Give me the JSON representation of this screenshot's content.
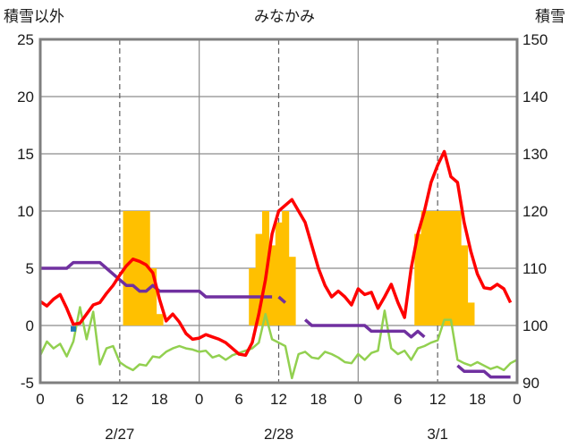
{
  "chart_data": {
    "type": "line",
    "title": "みなかみ",
    "left_axis_label": "積雪以外",
    "right_axis_label": "積雪",
    "y_left": {
      "min": -5,
      "max": 25,
      "ticks": [
        -5,
        0,
        5,
        10,
        15,
        20,
        25
      ]
    },
    "y_right": {
      "min": 90,
      "max": 150,
      "ticks": [
        90,
        100,
        110,
        120,
        130,
        140,
        150
      ]
    },
    "x": {
      "min": 0,
      "max": 72,
      "ticks": [
        0,
        6,
        12,
        18,
        24,
        30,
        36,
        42,
        48,
        54,
        60,
        66,
        72
      ],
      "tick_labels": [
        "0",
        "6",
        "12",
        "18",
        "0",
        "6",
        "12",
        "18",
        "0",
        "6",
        "12",
        "18",
        "0"
      ]
    },
    "days": [
      {
        "label": "2/27",
        "center": 12
      },
      {
        "label": "2/28",
        "center": 36
      },
      {
        "label": "3/1",
        "center": 60
      }
    ],
    "colors": {
      "bars": "#ffc000",
      "red": "#ff0000",
      "green": "#92d050",
      "purple": "#7030a0",
      "marker": "#1f77b4"
    },
    "bars": [
      {
        "x": 13,
        "value": 10
      },
      {
        "x": 14,
        "value": 10
      },
      {
        "x": 15,
        "value": 10
      },
      {
        "x": 16,
        "value": 10
      },
      {
        "x": 17,
        "value": 5
      },
      {
        "x": 18,
        "value": 1
      },
      {
        "x": 32,
        "value": 5
      },
      {
        "x": 33,
        "value": 8
      },
      {
        "x": 34,
        "value": 10
      },
      {
        "x": 35,
        "value": 7
      },
      {
        "x": 36,
        "value": 9
      },
      {
        "x": 37,
        "value": 10
      },
      {
        "x": 38,
        "value": 6
      },
      {
        "x": 57,
        "value": 8
      },
      {
        "x": 58,
        "value": 10
      },
      {
        "x": 59,
        "value": 10
      },
      {
        "x": 60,
        "value": 10
      },
      {
        "x": 61,
        "value": 10
      },
      {
        "x": 62,
        "value": 10
      },
      {
        "x": 63,
        "value": 10
      },
      {
        "x": 64,
        "value": 7
      },
      {
        "x": 65,
        "value": 2
      }
    ],
    "red_series": [
      [
        0,
        2.1
      ],
      [
        1,
        1.7
      ],
      [
        2,
        2.3
      ],
      [
        3,
        2.7
      ],
      [
        4,
        1.5
      ],
      [
        5,
        0.1
      ],
      [
        6,
        0.2
      ],
      [
        7,
        1.0
      ],
      [
        8,
        1.8
      ],
      [
        9,
        2.0
      ],
      [
        10,
        2.8
      ],
      [
        11,
        3.5
      ],
      [
        12,
        4.4
      ],
      [
        13,
        5.2
      ],
      [
        14,
        5.8
      ],
      [
        15,
        5.6
      ],
      [
        16,
        5.3
      ],
      [
        17,
        4.6
      ],
      [
        18,
        2.3
      ],
      [
        19,
        0.4
      ],
      [
        20,
        1.0
      ],
      [
        21,
        0.3
      ],
      [
        22,
        -0.7
      ],
      [
        23,
        -1.2
      ],
      [
        24,
        -1.1
      ],
      [
        25,
        -0.8
      ],
      [
        26,
        -1.0
      ],
      [
        27,
        -1.2
      ],
      [
        28,
        -1.5
      ],
      [
        29,
        -2.0
      ],
      [
        30,
        -2.5
      ],
      [
        31,
        -2.6
      ],
      [
        32,
        -1.5
      ],
      [
        33,
        1.0
      ],
      [
        34,
        4.0
      ],
      [
        35,
        8.0
      ],
      [
        36,
        10.0
      ],
      [
        37,
        10.5
      ],
      [
        38,
        11.0
      ],
      [
        39,
        10.0
      ],
      [
        40,
        9.0
      ],
      [
        41,
        7.0
      ],
      [
        42,
        5.0
      ],
      [
        43,
        3.5
      ],
      [
        44,
        2.5
      ],
      [
        45,
        3.0
      ],
      [
        46,
        2.5
      ],
      [
        47,
        1.8
      ],
      [
        48,
        3.2
      ],
      [
        49,
        2.7
      ],
      [
        50,
        2.9
      ],
      [
        51,
        1.5
      ],
      [
        52,
        2.5
      ],
      [
        53,
        3.6
      ],
      [
        54,
        2.0
      ],
      [
        55,
        0.7
      ],
      [
        56,
        5.0
      ],
      [
        57,
        8.0
      ],
      [
        58,
        10.0
      ],
      [
        59,
        12.5
      ],
      [
        60,
        14.0
      ],
      [
        61,
        15.2
      ],
      [
        62,
        13.0
      ],
      [
        63,
        12.5
      ],
      [
        64,
        9.0
      ],
      [
        65,
        6.5
      ],
      [
        66,
        4.5
      ],
      [
        67,
        3.3
      ],
      [
        68,
        3.2
      ],
      [
        69,
        3.6
      ],
      [
        70,
        3.2
      ],
      [
        71,
        2.0
      ]
    ],
    "green_series": [
      [
        0,
        -2.6
      ],
      [
        1,
        -1.4
      ],
      [
        2,
        -2.0
      ],
      [
        3,
        -1.6
      ],
      [
        4,
        -2.7
      ],
      [
        5,
        -1.4
      ],
      [
        6,
        1.6
      ],
      [
        7,
        -1.2
      ],
      [
        8,
        1.2
      ],
      [
        9,
        -3.4
      ],
      [
        10,
        -2.0
      ],
      [
        11,
        -1.8
      ],
      [
        12,
        -3.2
      ],
      [
        13,
        -3.6
      ],
      [
        14,
        -3.9
      ],
      [
        15,
        -3.4
      ],
      [
        16,
        -3.5
      ],
      [
        17,
        -2.7
      ],
      [
        18,
        -2.8
      ],
      [
        19,
        -2.3
      ],
      [
        20,
        -2.0
      ],
      [
        21,
        -1.8
      ],
      [
        22,
        -2.0
      ],
      [
        23,
        -2.1
      ],
      [
        24,
        -2.3
      ],
      [
        25,
        -2.2
      ],
      [
        26,
        -2.8
      ],
      [
        27,
        -2.6
      ],
      [
        28,
        -3.0
      ],
      [
        29,
        -2.6
      ],
      [
        30,
        -2.4
      ],
      [
        31,
        -2.2
      ],
      [
        32,
        -2.0
      ],
      [
        33,
        -1.5
      ],
      [
        34,
        1.0
      ],
      [
        35,
        -1.2
      ],
      [
        36,
        -1.5
      ],
      [
        37,
        -1.8
      ],
      [
        38,
        -4.6
      ],
      [
        39,
        -2.5
      ],
      [
        40,
        -2.3
      ],
      [
        41,
        -2.8
      ],
      [
        42,
        -2.9
      ],
      [
        43,
        -2.3
      ],
      [
        44,
        -2.5
      ],
      [
        45,
        -2.8
      ],
      [
        46,
        -3.2
      ],
      [
        47,
        -3.3
      ],
      [
        48,
        -2.5
      ],
      [
        49,
        -3.0
      ],
      [
        50,
        -2.4
      ],
      [
        51,
        -2.2
      ],
      [
        52,
        1.3
      ],
      [
        53,
        -2.0
      ],
      [
        54,
        -2.5
      ],
      [
        55,
        -2.2
      ],
      [
        56,
        -3.0
      ],
      [
        57,
        -2.0
      ],
      [
        58,
        -1.8
      ],
      [
        59,
        -1.5
      ],
      [
        60,
        -1.3
      ],
      [
        61,
        0.5
      ],
      [
        62,
        0.5
      ],
      [
        63,
        -3.0
      ],
      [
        64,
        -3.3
      ],
      [
        65,
        -3.5
      ],
      [
        66,
        -3.2
      ],
      [
        67,
        -3.5
      ],
      [
        68,
        -3.8
      ],
      [
        69,
        -3.6
      ],
      [
        70,
        -3.9
      ],
      [
        71,
        -3.3
      ],
      [
        72,
        -3.0
      ]
    ],
    "purple_segments": [
      [
        [
          0,
          110
        ],
        [
          4,
          110
        ],
        [
          5,
          111
        ],
        [
          9,
          111
        ],
        [
          10,
          110
        ],
        [
          11,
          109
        ],
        [
          12,
          108
        ],
        [
          13,
          107
        ],
        [
          14,
          107
        ],
        [
          15,
          106
        ],
        [
          16,
          106
        ],
        [
          17,
          107
        ],
        [
          18,
          106
        ],
        [
          19,
          106
        ],
        [
          21,
          106
        ],
        [
          24,
          106
        ],
        [
          25,
          105
        ],
        [
          34,
          105
        ],
        [
          35,
          105
        ]
      ],
      [
        [
          36,
          105
        ],
        [
          37,
          104
        ]
      ],
      [
        [
          40,
          101
        ],
        [
          41,
          100
        ],
        [
          49,
          100
        ],
        [
          50,
          99
        ],
        [
          55,
          99
        ],
        [
          56,
          98
        ],
        [
          57,
          99
        ],
        [
          58,
          98
        ]
      ],
      [
        [
          63,
          93
        ],
        [
          64,
          92
        ],
        [
          67,
          92
        ],
        [
          68,
          91
        ],
        [
          71,
          91
        ]
      ]
    ],
    "marker": {
      "x": 5,
      "value": -0.3
    }
  }
}
